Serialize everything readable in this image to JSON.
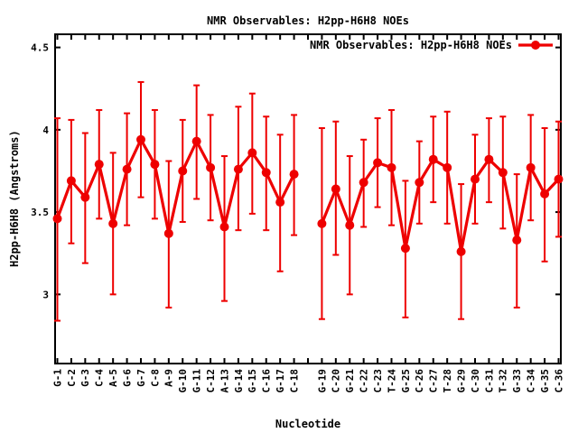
{
  "chart_data": {
    "type": "line",
    "title": "NMR Observables: H2pp-H6H8 NOEs",
    "xlabel": "Nucleotide",
    "ylabel": "H2pp-H6H8 (Angstroms)",
    "legend": {
      "label": "NMR Observables: H2pp-H6H8 NOEs",
      "position": "top-right-inside",
      "marker": "filled-circle-on-line"
    },
    "colors": {
      "series": "#ee0000",
      "axes": "#000000",
      "background": "#ffffff"
    },
    "grid": false,
    "error_bars": "symmetric-y",
    "ylim": [
      2.58,
      4.58
    ],
    "yticks": {
      "values": [
        3,
        3.5,
        4,
        4.5
      ],
      "labels": [
        "3",
        "3.5",
        "4",
        "4.5"
      ]
    },
    "x_slot_count": 37,
    "gap_after_index": 17,
    "categories": [
      "G-1",
      "C-2",
      "G-3",
      "C-4",
      "A-5",
      "G-6",
      "G-7",
      "C-8",
      "A-9",
      "G-10",
      "G-11",
      "C-12",
      "A-13",
      "G-14",
      "G-15",
      "C-16",
      "G-17",
      "C-18",
      "G-19",
      "C-20",
      "G-21",
      "C-22",
      "C-23",
      "T-24",
      "G-25",
      "C-26",
      "C-27",
      "T-28",
      "G-29",
      "C-30",
      "C-31",
      "T-32",
      "G-33",
      "C-34",
      "G-35",
      "C-36"
    ],
    "series": [
      {
        "name": "NMR Observables: H2pp-H6H8 NOEs",
        "values": [
          3.46,
          3.69,
          3.59,
          3.79,
          3.43,
          3.76,
          3.94,
          3.79,
          3.37,
          3.75,
          3.93,
          3.77,
          3.41,
          3.76,
          3.86,
          3.74,
          3.56,
          3.73,
          3.43,
          3.64,
          3.42,
          3.68,
          3.8,
          3.77,
          3.28,
          3.68,
          3.82,
          3.77,
          3.26,
          3.7,
          3.82,
          3.74,
          3.33,
          3.77,
          3.61,
          3.7
        ],
        "err_low": [
          2.84,
          3.31,
          3.19,
          3.46,
          3.0,
          3.42,
          3.59,
          3.46,
          2.92,
          3.44,
          3.58,
          3.45,
          2.96,
          3.39,
          3.49,
          3.39,
          3.14,
          3.36,
          2.85,
          3.24,
          3.0,
          3.41,
          3.53,
          3.42,
          2.86,
          3.43,
          3.56,
          3.43,
          2.85,
          3.43,
          3.56,
          3.4,
          2.92,
          3.45,
          3.2,
          3.35
        ],
        "err_high": [
          4.07,
          4.06,
          3.98,
          4.12,
          3.86,
          4.1,
          4.29,
          4.12,
          3.81,
          4.06,
          4.27,
          4.09,
          3.84,
          4.14,
          4.22,
          4.08,
          3.97,
          4.09,
          4.01,
          4.05,
          3.84,
          3.94,
          4.07,
          4.12,
          3.69,
          3.93,
          4.08,
          4.11,
          3.67,
          3.97,
          4.07,
          4.08,
          3.73,
          4.09,
          4.01,
          4.05
        ],
        "segments": [
          [
            0,
            17
          ],
          [
            18,
            35
          ]
        ]
      }
    ]
  }
}
